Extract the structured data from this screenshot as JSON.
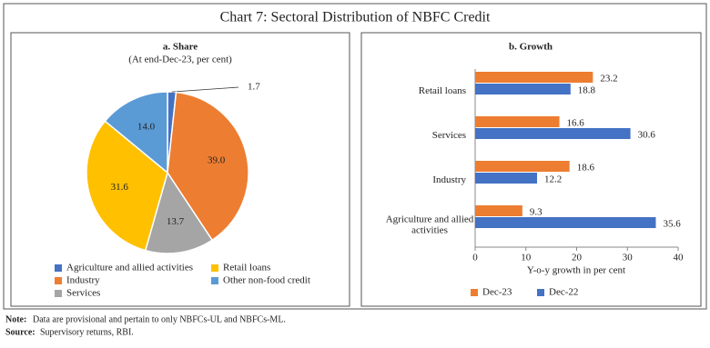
{
  "title": "Chart 7: Sectoral Distribution of NBFC Credit",
  "chart_data": [
    {
      "type": "pie",
      "title": "a. Share",
      "subtitle": "(At end-Dec-23, per cent)",
      "categories": [
        "Agriculture and allied activities",
        "Industry",
        "Services",
        "Retail loans",
        "Other non-food credit"
      ],
      "values": [
        1.7,
        39.0,
        13.7,
        31.6,
        14.0
      ],
      "value_labels": [
        "1.7",
        "39.0",
        "13.7",
        "31.6",
        "14.0"
      ],
      "colors": [
        "#4472c4",
        "#ed7d31",
        "#a5a5a5",
        "#ffc000",
        "#5b9bd5"
      ]
    },
    {
      "type": "hbar",
      "title": "b. Growth",
      "categories": [
        "Retail loans",
        "Services",
        "Industry",
        "Agriculture and allied activities"
      ],
      "series": [
        {
          "name": "Dec-23",
          "color": "#ed7d31",
          "values": [
            23.2,
            16.6,
            18.6,
            9.3
          ]
        },
        {
          "name": "Dec-22",
          "color": "#4472c4",
          "values": [
            18.8,
            30.6,
            12.2,
            35.6
          ]
        }
      ],
      "xlabel": "Y-o-y growth in per cent",
      "xlim": [
        0,
        40
      ],
      "xticks": [
        0,
        10,
        20,
        30,
        40
      ],
      "grid": false
    }
  ],
  "notes": {
    "note_label": "Note:",
    "note": "Data are provisional and pertain to only NBFCs-UL and NBFCs-ML.",
    "source_label": "Source:",
    "source": "Supervisory returns, RBI."
  }
}
